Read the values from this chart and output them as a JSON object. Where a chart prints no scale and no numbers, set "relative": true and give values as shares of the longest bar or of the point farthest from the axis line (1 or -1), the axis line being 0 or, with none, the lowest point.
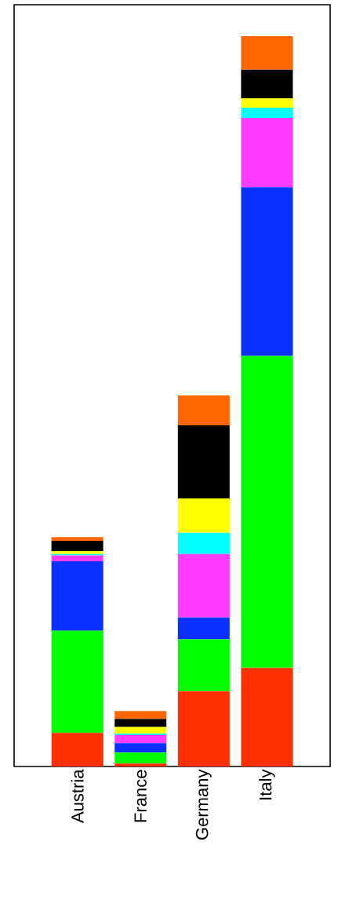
{
  "chart_data": {
    "type": "bar",
    "stacked": true,
    "relative": true,
    "categories": [
      "Austria",
      "France",
      "Germany",
      "Italy"
    ],
    "series": [
      {
        "color": "#ff3000",
        "values": [
          0.046,
          0.004,
          0.103,
          0.135
        ]
      },
      {
        "color": "#00ff00",
        "values": [
          0.14,
          0.015,
          0.071,
          0.427
        ]
      },
      {
        "color": "#0a30ff",
        "values": [
          0.095,
          0.013,
          0.03,
          0.231
        ]
      },
      {
        "color": "#ff3cff",
        "values": [
          0.008,
          0.011,
          0.087,
          0.095
        ]
      },
      {
        "color": "#00ffff",
        "values": [
          0.002,
          0.002,
          0.029,
          0.014
        ]
      },
      {
        "color": "#ffff00",
        "values": [
          0.004,
          0.009,
          0.047,
          0.013
        ]
      },
      {
        "color": "#000000",
        "values": [
          0.014,
          0.011,
          0.1,
          0.039
        ]
      },
      {
        "color": "#ff6600",
        "values": [
          0.005,
          0.011,
          0.041,
          0.046
        ]
      }
    ]
  }
}
